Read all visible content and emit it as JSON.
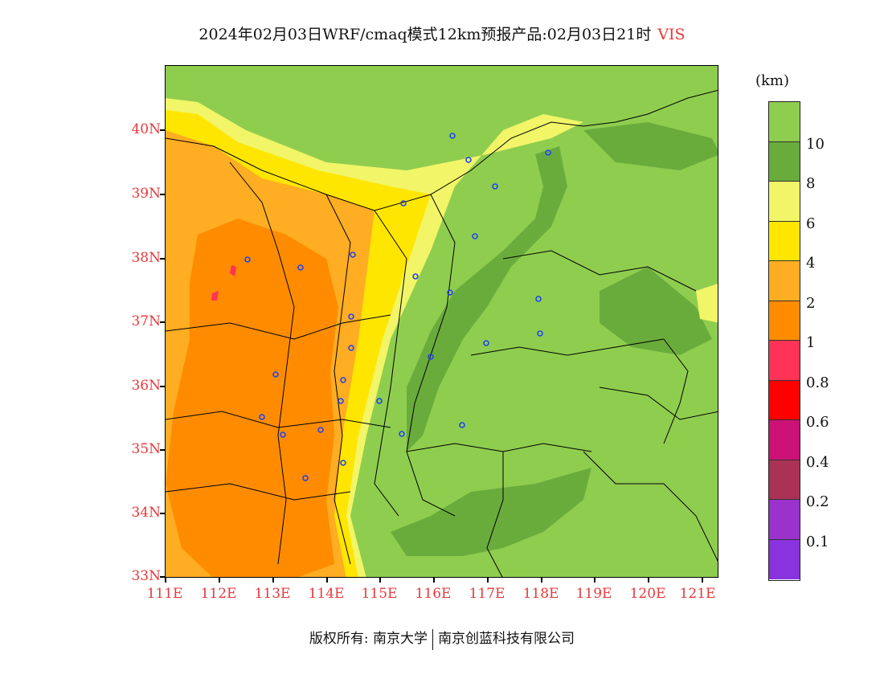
{
  "title": {
    "main": "2024年02月03日WRF/cmaq模式12km预报产品:02月03日21时",
    "variable": "VIS"
  },
  "colors": {
    "accent": "#e8393b",
    "background": "#8fcd4f"
  },
  "axes": {
    "lat_labels": [
      "40N",
      "39N",
      "38N",
      "37N",
      "36N",
      "35N",
      "34N",
      "33N"
    ],
    "lon_labels": [
      "111E",
      "112E",
      "113E",
      "114E",
      "115E",
      "116E",
      "117E",
      "118E",
      "119E",
      "120E",
      "121E"
    ]
  },
  "legend": {
    "unit": "(km)",
    "levels": [
      "10",
      "8",
      "6",
      "4",
      "2",
      "1",
      "0.8",
      "0.6",
      "0.4",
      "0.2",
      "0.1"
    ],
    "colors": [
      "#8fcd4f",
      "#6aac3c",
      "#f1f567",
      "#ffe600",
      "#ffad22",
      "#ff8c00",
      "#ff3355",
      "#ff0000",
      "#cc1177",
      "#aa3355",
      "#9933cc",
      "#8833dd"
    ]
  },
  "map": {
    "region": "North China Plain",
    "lat_range": [
      33,
      41
    ],
    "lon_range": [
      111,
      121.4
    ],
    "stations_shown": 25
  },
  "footer": {
    "copyright": "版权所有: 南京大学",
    "company": "南京创蓝科技有限公司"
  }
}
